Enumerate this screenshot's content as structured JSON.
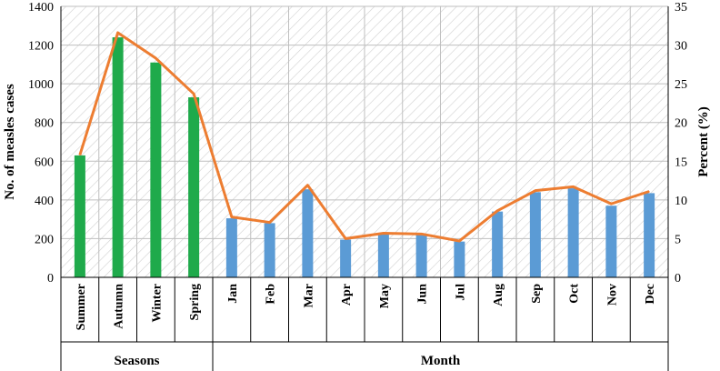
{
  "chart_data": {
    "type": "bar",
    "categories": [
      "Summer",
      "Autumn",
      "Winter",
      "Spring",
      "Jan",
      "Feb",
      "Mar",
      "Apr",
      "May",
      "Jun",
      "Jul",
      "Aug",
      "Sep",
      "Oct",
      "Nov",
      "Dec"
    ],
    "groups": [
      {
        "label": "Seasons",
        "categories": [
          "Summer",
          "Autumn",
          "Winter",
          "Spring"
        ]
      },
      {
        "label": "Month",
        "categories": [
          "Jan",
          "Feb",
          "Mar",
          "Apr",
          "May",
          "Jun",
          "Jul",
          "Aug",
          "Sep",
          "Oct",
          "Nov",
          "Dec"
        ]
      }
    ],
    "series": [
      {
        "values": [
          630,
          1240,
          1110,
          930,
          305,
          280,
          455,
          195,
          225,
          225,
          185,
          340,
          440,
          460,
          370,
          435
        ],
        "axis": "left",
        "type": "bar"
      },
      {
        "values": [
          15.8,
          31.6,
          28.3,
          23.7,
          7.8,
          7.1,
          11.9,
          5.0,
          5.7,
          5.6,
          4.7,
          8.6,
          11.2,
          11.7,
          9.5,
          11.1
        ],
        "axis": "right",
        "type": "line"
      }
    ],
    "ylabel": "No. of measles cases",
    "y2label": "Percent (%)",
    "ylim": [
      0,
      1400
    ],
    "y2lim": [
      0,
      35
    ],
    "yticks": [
      "0",
      "200",
      "400",
      "600",
      "800",
      "1000",
      "1200",
      "1400"
    ],
    "y2ticks": [
      "0",
      "5",
      "10",
      "15",
      "20",
      "25",
      "30",
      "35"
    ],
    "grid": true,
    "legend": "none",
    "colors": {
      "season_bar": "#1faa4b",
      "month_bar": "#5b9bd5",
      "line": "#ed7d31",
      "hatch": "#d0d0d0"
    }
  }
}
